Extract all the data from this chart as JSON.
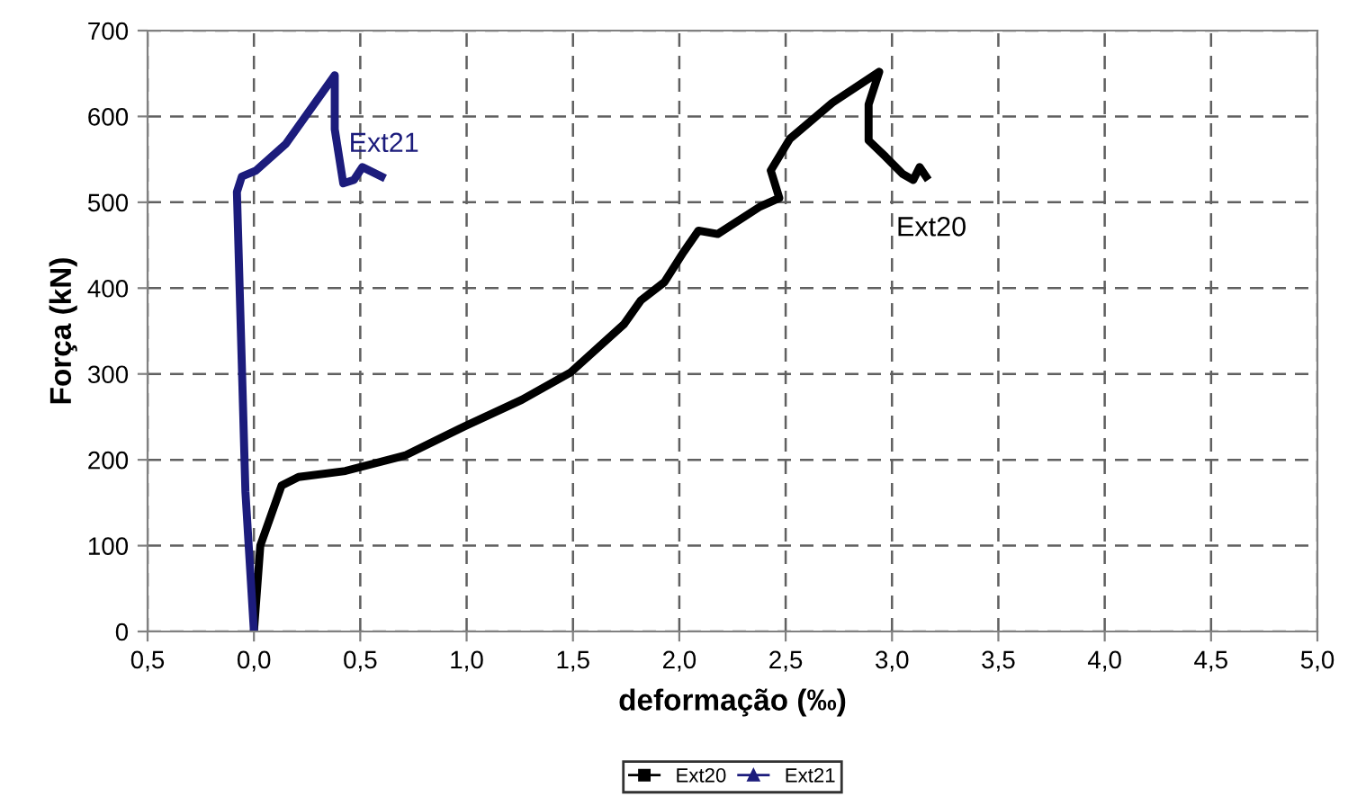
{
  "chart_data": {
    "type": "line",
    "xlabel": "deformação (‰)",
    "ylabel": "Força (kN)",
    "xlim": [
      -0.5,
      5.0
    ],
    "xticks": [
      {
        "value": -0.5,
        "label": "0,5"
      },
      {
        "value": 0,
        "label": "0,0"
      },
      {
        "value": 0.5,
        "label": "0,5"
      },
      {
        "value": 1.0,
        "label": "1,0"
      },
      {
        "value": 1.5,
        "label": "1,5"
      },
      {
        "value": 2.0,
        "label": "2,0"
      },
      {
        "value": 2.5,
        "label": "2,5"
      },
      {
        "value": 3.0,
        "label": "3,0"
      },
      {
        "value": 3.5,
        "label": "3,5"
      },
      {
        "value": 4.0,
        "label": "4,0"
      },
      {
        "value": 4.5,
        "label": "4,5"
      },
      {
        "value": 5.0,
        "label": "5,0"
      }
    ],
    "ylim": [
      0,
      700
    ],
    "yticks": [
      0,
      100,
      200,
      300,
      400,
      500,
      600,
      700
    ],
    "grid": true,
    "legend": "bottom",
    "line_style": "solid",
    "series": [
      {
        "name": "Ext20",
        "color": "#000000",
        "marker": "square",
        "x": [
          0,
          0.03,
          0.13,
          0.21,
          0.43,
          0.71,
          0.99,
          1.26,
          1.49,
          1.74,
          1.82,
          1.93,
          2.02,
          2.09,
          2.18,
          2.38,
          2.47,
          2.43,
          2.52,
          2.72,
          2.94,
          2.89,
          2.89,
          2.97,
          3.05,
          3.1,
          3.13,
          3.16
        ],
        "values": [
          0,
          100,
          170,
          180,
          187,
          205,
          239,
          270,
          302,
          358,
          386,
          407,
          442,
          467,
          463,
          495,
          505,
          537,
          574,
          616,
          652,
          614,
          572,
          553,
          533,
          526,
          541,
          530
        ]
      },
      {
        "name": "Ext21",
        "color": "#1c1c7c",
        "marker": "triangle",
        "x": [
          0,
          -0.04,
          -0.08,
          -0.057,
          0.01,
          0.15,
          0.38,
          0.38,
          0.38,
          0.42,
          0.47,
          0.51,
          0.6
        ],
        "values": [
          0,
          163,
          512,
          530,
          537,
          568,
          648,
          610,
          585,
          522,
          526,
          541,
          530
        ]
      }
    ],
    "annotations": [
      "Ext21",
      "Ext20"
    ]
  }
}
